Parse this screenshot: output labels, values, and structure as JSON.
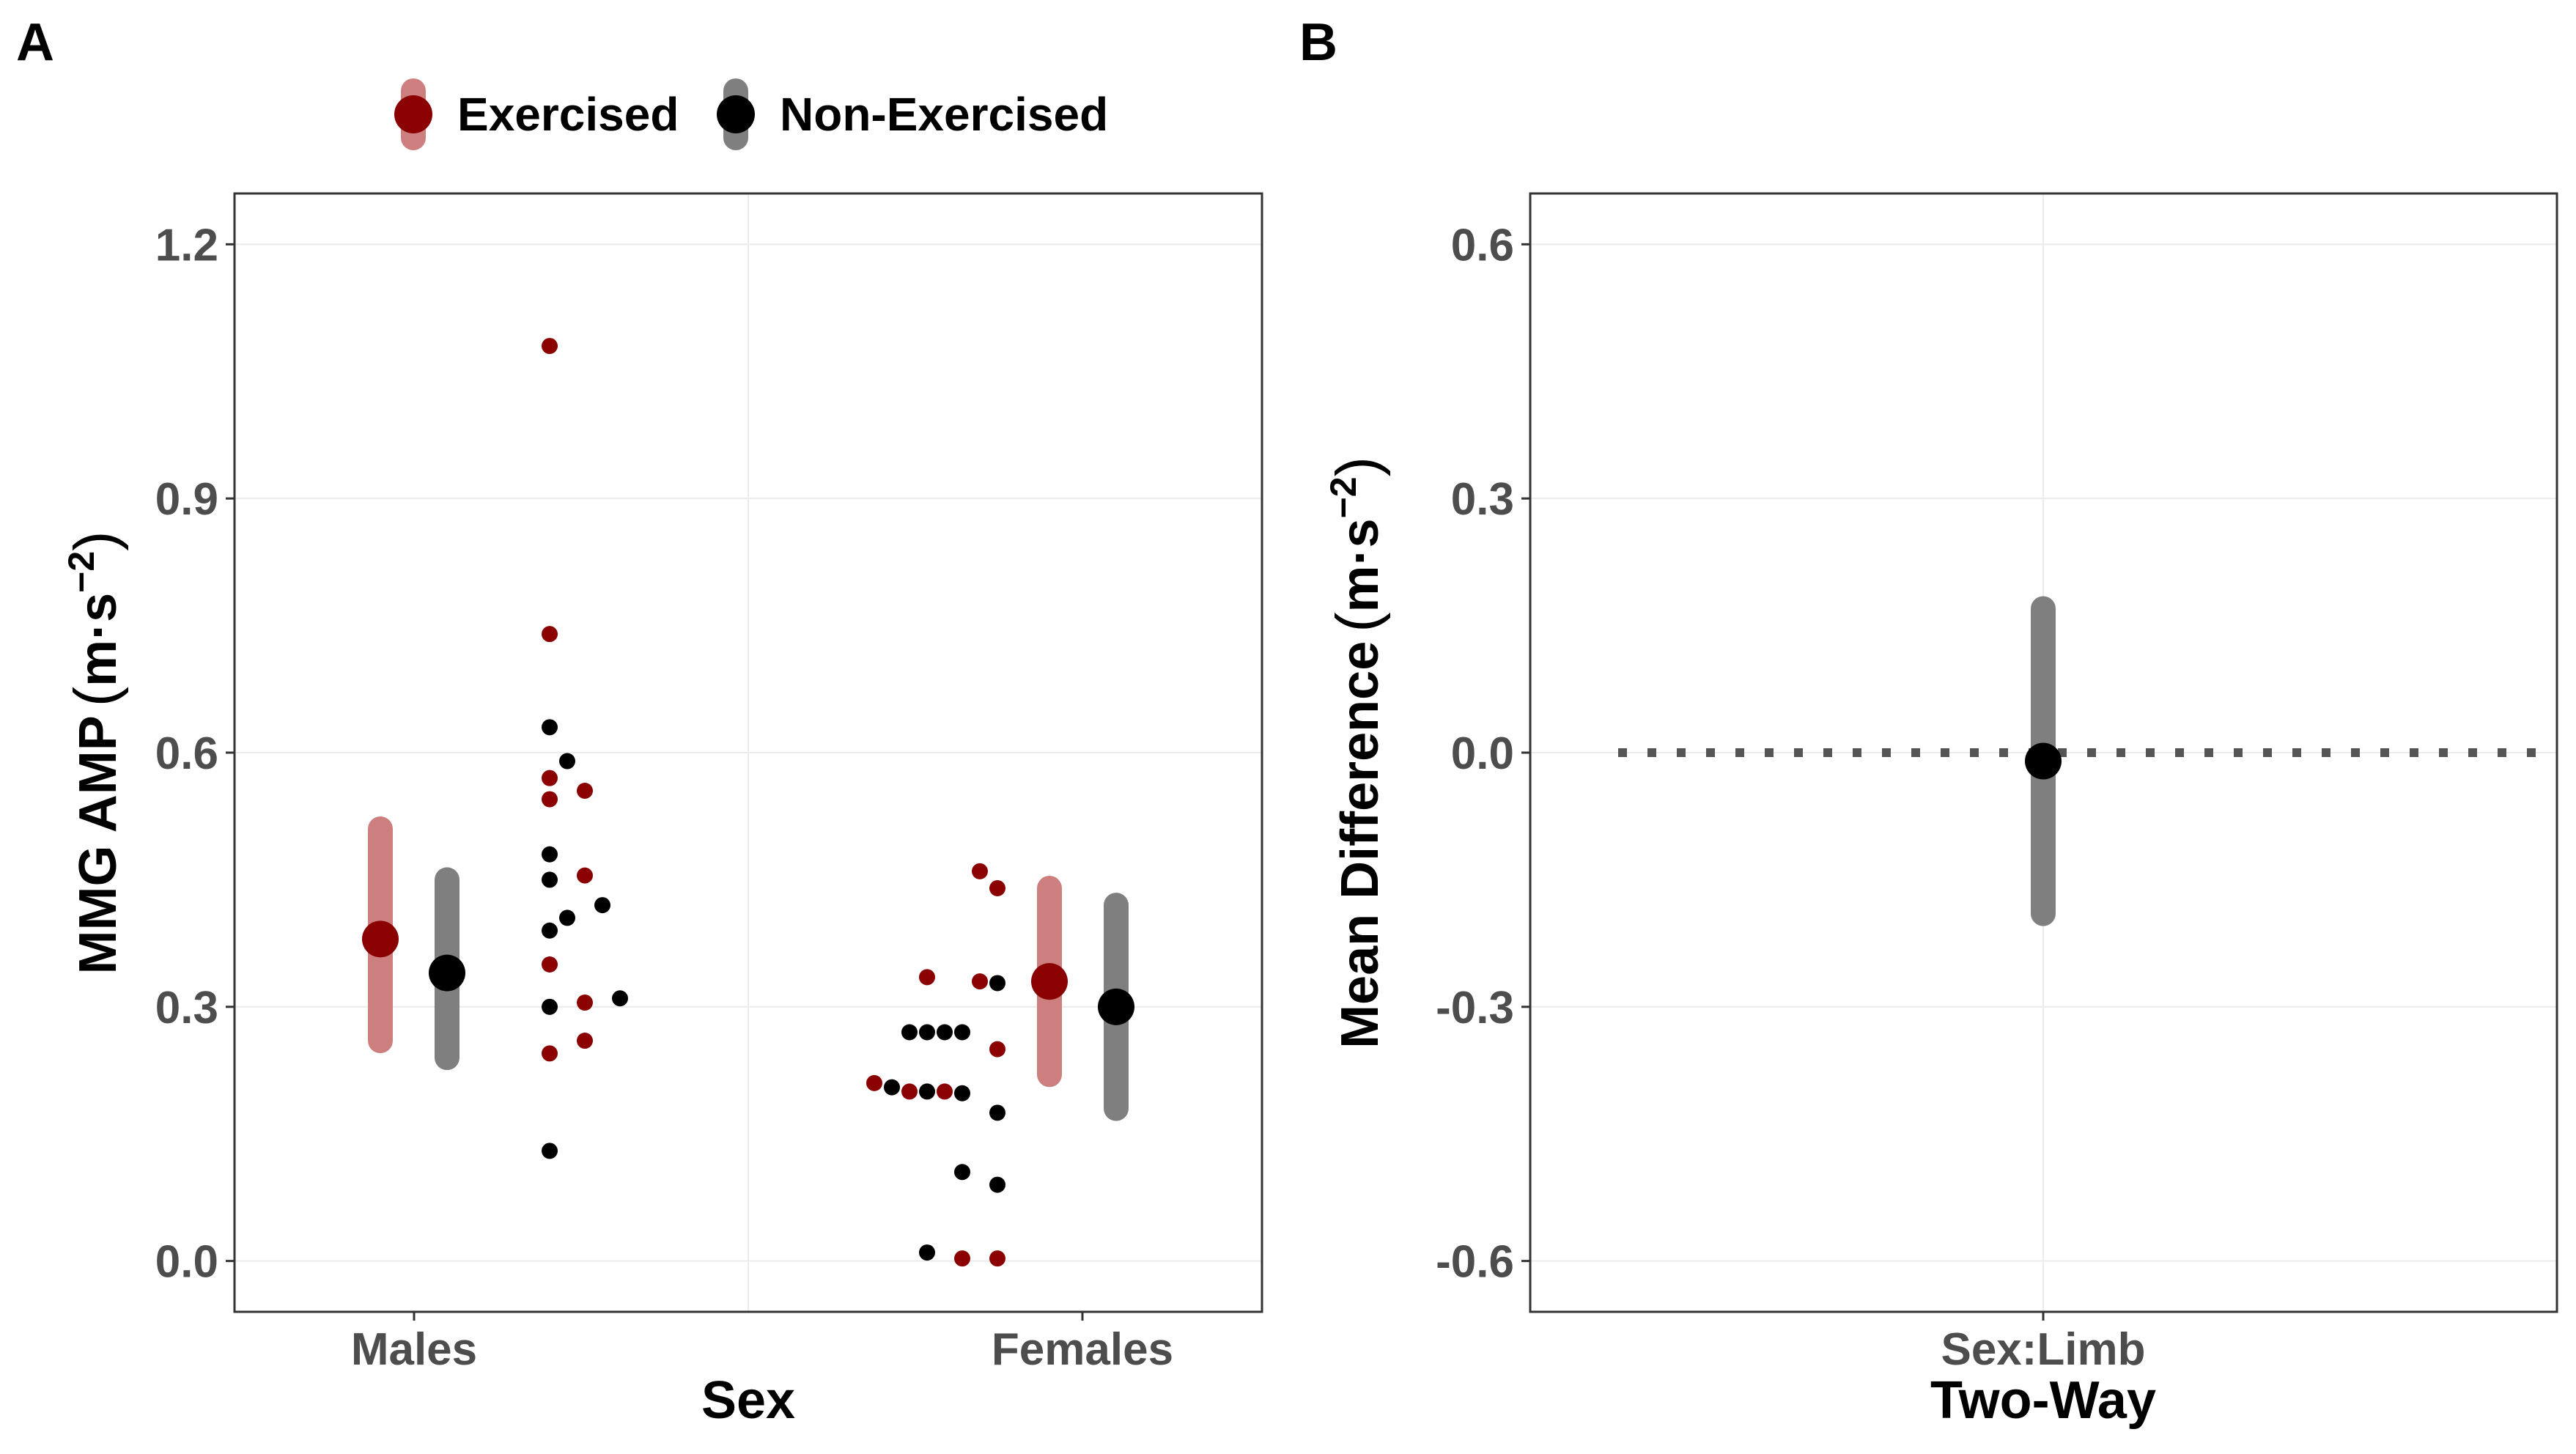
{
  "colors": {
    "exercised": "#8B0000",
    "exercised_ci": "#CD7F7F",
    "non_exercised": "#000000",
    "non_exercised_ci": "#7F7F7F",
    "axis_text": "#4D4D4D",
    "text": "#000000",
    "border": "#333333",
    "grid": "#EBEBEB",
    "zero_line": "#555555"
  },
  "chart_data": [
    {
      "panel_label": "A",
      "type": "scatter",
      "xlabel": "Sex",
      "ylabel": "MMG AMP",
      "ylabel_units": "m·s",
      "ylabel_exponent": "−2",
      "categories": [
        "Males",
        "Females"
      ],
      "ylim": [
        -0.06,
        1.26
      ],
      "yticks": [
        0.0,
        0.3,
        0.6,
        0.9,
        1.2
      ],
      "ytick_labels": [
        "0.0",
        "0.3",
        "0.6",
        "0.9",
        "1.2"
      ],
      "legend": [
        "Exercised",
        "Non-Exercised"
      ],
      "legend_position": "top",
      "series": [
        {
          "name": "Exercised",
          "summary": [
            {
              "category": "Males",
              "mean": 0.38,
              "lower": 0.26,
              "upper": 0.51
            },
            {
              "category": "Females",
              "mean": 0.33,
              "lower": 0.22,
              "upper": 0.44
            }
          ]
        },
        {
          "name": "Non-Exercised",
          "summary": [
            {
              "category": "Males",
              "mean": 0.34,
              "lower": 0.24,
              "upper": 0.45
            },
            {
              "category": "Females",
              "mean": 0.3,
              "lower": 0.18,
              "upper": 0.42
            }
          ]
        }
      ],
      "raw_points": [
        {
          "group": "Males",
          "series": "Exercised",
          "y": 1.08,
          "slot": 0
        },
        {
          "group": "Males",
          "series": "Exercised",
          "y": 0.74,
          "slot": 0
        },
        {
          "group": "Males",
          "series": "Non-Exercised",
          "y": 0.63,
          "slot": 0
        },
        {
          "group": "Males",
          "series": "Non-Exercised",
          "y": 0.59,
          "slot": 1
        },
        {
          "group": "Males",
          "series": "Exercised",
          "y": 0.57,
          "slot": 0
        },
        {
          "group": "Males",
          "series": "Exercised",
          "y": 0.555,
          "slot": 2
        },
        {
          "group": "Males",
          "series": "Exercised",
          "y": 0.545,
          "slot": 0
        },
        {
          "group": "Males",
          "series": "Non-Exercised",
          "y": 0.48,
          "slot": 0
        },
        {
          "group": "Males",
          "series": "Non-Exercised",
          "y": 0.45,
          "slot": 0
        },
        {
          "group": "Males",
          "series": "Exercised",
          "y": 0.455,
          "slot": 2
        },
        {
          "group": "Males",
          "series": "Non-Exercised",
          "y": 0.42,
          "slot": 3
        },
        {
          "group": "Males",
          "series": "Non-Exercised",
          "y": 0.405,
          "slot": 1
        },
        {
          "group": "Males",
          "series": "Non-Exercised",
          "y": 0.39,
          "slot": 0
        },
        {
          "group": "Males",
          "series": "Exercised",
          "y": 0.35,
          "slot": 0
        },
        {
          "group": "Males",
          "series": "Non-Exercised",
          "y": 0.31,
          "slot": 4
        },
        {
          "group": "Males",
          "series": "Exercised",
          "y": 0.305,
          "slot": 2
        },
        {
          "group": "Males",
          "series": "Non-Exercised",
          "y": 0.3,
          "slot": 0
        },
        {
          "group": "Males",
          "series": "Exercised",
          "y": 0.26,
          "slot": 2
        },
        {
          "group": "Males",
          "series": "Exercised",
          "y": 0.245,
          "slot": 0
        },
        {
          "group": "Males",
          "series": "Non-Exercised",
          "y": 0.13,
          "slot": 0
        },
        {
          "group": "Females",
          "series": "Exercised",
          "y": 0.46,
          "slot": 6
        },
        {
          "group": "Females",
          "series": "Exercised",
          "y": 0.44,
          "slot": 7
        },
        {
          "group": "Females",
          "series": "Exercised",
          "y": 0.335,
          "slot": 3
        },
        {
          "group": "Females",
          "series": "Exercised",
          "y": 0.33,
          "slot": 6
        },
        {
          "group": "Females",
          "series": "Non-Exercised",
          "y": 0.328,
          "slot": 7
        },
        {
          "group": "Females",
          "series": "Non-Exercised",
          "y": 0.27,
          "slot": 2
        },
        {
          "group": "Females",
          "series": "Non-Exercised",
          "y": 0.27,
          "slot": 3
        },
        {
          "group": "Females",
          "series": "Non-Exercised",
          "y": 0.27,
          "slot": 4
        },
        {
          "group": "Females",
          "series": "Non-Exercised",
          "y": 0.27,
          "slot": 5
        },
        {
          "group": "Females",
          "series": "Exercised",
          "y": 0.25,
          "slot": 7
        },
        {
          "group": "Females",
          "series": "Exercised",
          "y": 0.21,
          "slot": 0
        },
        {
          "group": "Females",
          "series": "Non-Exercised",
          "y": 0.205,
          "slot": 1
        },
        {
          "group": "Females",
          "series": "Exercised",
          "y": 0.2,
          "slot": 2
        },
        {
          "group": "Females",
          "series": "Non-Exercised",
          "y": 0.2,
          "slot": 3
        },
        {
          "group": "Females",
          "series": "Exercised",
          "y": 0.2,
          "slot": 4
        },
        {
          "group": "Females",
          "series": "Non-Exercised",
          "y": 0.198,
          "slot": 5
        },
        {
          "group": "Females",
          "series": "Non-Exercised",
          "y": 0.175,
          "slot": 7
        },
        {
          "group": "Females",
          "series": "Non-Exercised",
          "y": 0.105,
          "slot": 5
        },
        {
          "group": "Females",
          "series": "Non-Exercised",
          "y": 0.09,
          "slot": 7
        },
        {
          "group": "Females",
          "series": "Non-Exercised",
          "y": 0.01,
          "slot": 3
        },
        {
          "group": "Females",
          "series": "Exercised",
          "y": 0.003,
          "slot": 5
        },
        {
          "group": "Females",
          "series": "Exercised",
          "y": 0.003,
          "slot": 7
        }
      ]
    },
    {
      "panel_label": "B",
      "type": "scatter",
      "xlabel": "Two-Way",
      "ylabel": "Mean Difference",
      "ylabel_units": "m·s",
      "ylabel_exponent": "−2",
      "categories": [
        "Sex:Limb"
      ],
      "ylim": [
        -0.66,
        0.66
      ],
      "yticks": [
        -0.6,
        -0.3,
        0.0,
        0.3,
        0.6
      ],
      "ytick_labels": [
        "-0.6",
        "-0.3",
        "0.0",
        "0.3",
        "0.6"
      ],
      "reference_line": 0.0,
      "points": [
        {
          "category": "Sex:Limb",
          "estimate": -0.01,
          "lower": -0.19,
          "upper": 0.17
        }
      ]
    }
  ]
}
